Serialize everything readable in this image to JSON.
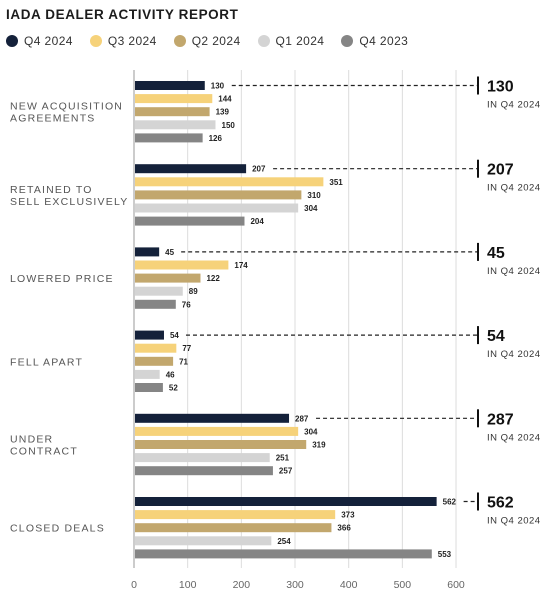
{
  "title": "IADA DEALER ACTIVITY REPORT",
  "colors": {
    "q4_2024": "#14213a",
    "q3_2024": "#f6d27a",
    "q2_2024": "#c2a76d",
    "q1_2024": "#d4d4d4",
    "q4_2023": "#858585",
    "grid": "#dcdcdc",
    "axis": "#9a9a9a"
  },
  "chart_data": {
    "type": "bar",
    "orientation": "horizontal",
    "title": "IADA DEALER ACTIVITY REPORT",
    "legend_position": "top",
    "grid": true,
    "xlim": [
      0,
      600
    ],
    "x_ticks": [
      "0",
      "100",
      "200",
      "300",
      "400",
      "500",
      "600"
    ],
    "categories": [
      [
        "NEW ACQUISITION",
        "AGREEMENTS"
      ],
      [
        "RETAINED TO",
        "SELL EXCLUSIVELY"
      ],
      [
        "LOWERED PRICE"
      ],
      [
        "FELL APART"
      ],
      [
        "UNDER",
        "CONTRACT"
      ],
      [
        "CLOSED DEALS"
      ]
    ],
    "series": [
      {
        "name": "Q4 2024",
        "color_key": "q4_2024",
        "values": [
          130,
          207,
          45,
          54,
          287,
          562
        ],
        "labels": [
          "130",
          "207",
          "45",
          "54",
          "287",
          "562"
        ]
      },
      {
        "name": "Q3 2024",
        "color_key": "q3_2024",
        "values": [
          144,
          351,
          174,
          77,
          304,
          373
        ],
        "labels": [
          "144",
          "351",
          "174",
          "77",
          "304",
          "373"
        ]
      },
      {
        "name": "Q2 2024",
        "color_key": "q2_2024",
        "values": [
          139,
          310,
          122,
          71,
          319,
          366
        ],
        "labels": [
          "139",
          "310",
          "122",
          "71",
          "319",
          "366"
        ]
      },
      {
        "name": "Q1 2024",
        "color_key": "q1_2024",
        "values": [
          150,
          304,
          89,
          46,
          251,
          254
        ],
        "labels": [
          "150",
          "304",
          "89",
          "46",
          "251",
          "254"
        ]
      },
      {
        "name": "Q4 2023",
        "color_key": "q4_2023",
        "values": [
          126,
          204,
          76,
          52,
          257,
          553
        ],
        "labels": [
          "126",
          "204",
          "76",
          "52",
          "257",
          "553"
        ]
      }
    ],
    "callouts": [
      {
        "value": "130",
        "sub": "IN Q4 2024"
      },
      {
        "value": "207",
        "sub": "IN Q4 2024"
      },
      {
        "value": "45",
        "sub": "IN Q4 2024"
      },
      {
        "value": "54",
        "sub": "IN Q4 2024"
      },
      {
        "value": "287",
        "sub": "IN Q4 2024"
      },
      {
        "value": "562",
        "sub": "IN Q4 2024"
      }
    ]
  }
}
